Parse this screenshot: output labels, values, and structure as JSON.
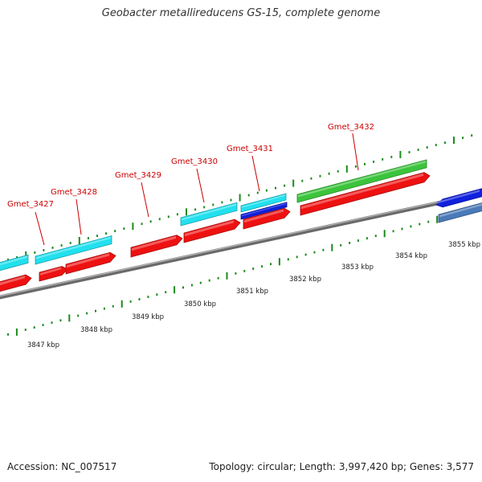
{
  "title": "Geobacter metallireducens GS-15, complete genome",
  "footer": {
    "accession": "Accession: NC_007517",
    "summary": "Topology: circular; Length: 3,997,420 bp; Genes: 3,577"
  },
  "colors": {
    "forward_cds": "#ee1111",
    "cyan_feature": "#22e0ee",
    "blue_feature": "#1020dd",
    "steelblue_feature": "#4a7ab8",
    "green_feature": "#3cc43c",
    "backbone": "#8c8c8c",
    "tick": "#1a8a1a",
    "gene_label": "#cc0000"
  },
  "scale_labels": [
    "3847 kbp",
    "3848 kbp",
    "3849 kbp",
    "3850 kbp",
    "3851 kbp",
    "3852 kbp",
    "3853 kbp",
    "3854 kbp",
    "3855 kbp"
  ],
  "gene_labels": [
    "Gmet_3427",
    "Gmet_3428",
    "Gmet_3429",
    "Gmet_3430",
    "Gmet_3431",
    "Gmet_3432"
  ],
  "features": [
    {
      "kind": "cyan_feature",
      "gene_label": "Gmet_3427"
    },
    {
      "kind": "cyan_feature",
      "gene_label": "Gmet_3428"
    },
    {
      "kind": "cyan_feature",
      "gene_label": "Gmet_3430"
    },
    {
      "kind": "cyan_feature",
      "gene_label": "Gmet_3431"
    },
    {
      "kind": "blue_feature",
      "gene_label": "Gmet_3431"
    },
    {
      "kind": "green_feature",
      "gene_label": "Gmet_3432"
    },
    {
      "kind": "blue_feature",
      "gene_label": ""
    },
    {
      "kind": "steelblue_feature",
      "gene_label": ""
    },
    {
      "kind": "forward_cds",
      "gene_label": ""
    },
    {
      "kind": "forward_cds",
      "gene_label": "Gmet_3427"
    },
    {
      "kind": "forward_cds",
      "gene_label": "Gmet_3428"
    },
    {
      "kind": "forward_cds",
      "gene_label": "Gmet_3429"
    },
    {
      "kind": "forward_cds",
      "gene_label": "Gmet_3430"
    },
    {
      "kind": "forward_cds",
      "gene_label": "Gmet_3431"
    },
    {
      "kind": "forward_cds",
      "gene_label": "Gmet_3432"
    }
  ]
}
